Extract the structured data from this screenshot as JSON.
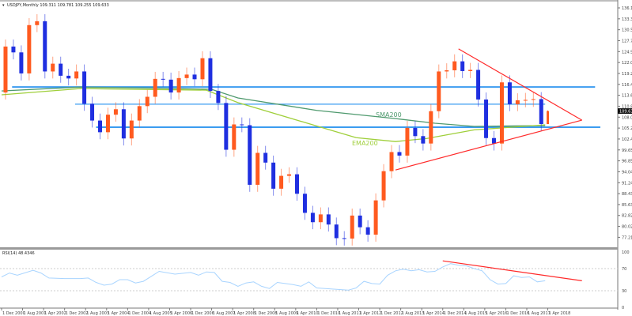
{
  "header": {
    "title": "USDJPY,Monthly  109.311 109.781 109.255 109.633"
  },
  "rsi_panel": {
    "title": "RSI(14) 48.4346"
  },
  "colors": {
    "bull": "#ff5a1f",
    "bear": "#1f2fe0",
    "sma": "#4f9a6e",
    "ema": "#9fcf3a",
    "hline": "#3b9cf0",
    "trend": "#ff2a2a",
    "rsi": "#a8d4ff"
  },
  "chart_data": [
    {
      "type": "candlestick",
      "title": "USDJPY,Monthly",
      "x_start": "Dec 2000",
      "x_step_months": 3,
      "closes": [
        114.4,
        126.2,
        124.7,
        119.3,
        131.7,
        132.7,
        119.8,
        121.8,
        118.7,
        118.0,
        119.8,
        111.5,
        107.2,
        104.2,
        108.7,
        110.1,
        102.6,
        107.2,
        110.9,
        113.3,
        117.9,
        117.7,
        114.4,
        118.1,
        119.0,
        117.8,
        123.2,
        114.8,
        111.7,
        99.7,
        106.2,
        106.0,
        90.7,
        98.9,
        96.4,
        89.7,
        93.0,
        93.4,
        88.4,
        83.5,
        81.1,
        83.1,
        80.5,
        77.0,
        76.9,
        82.8,
        79.8,
        77.9,
        86.7,
        94.2,
        99.1,
        98.2,
        105.3,
        103.2,
        101.3,
        109.6,
        119.8,
        120.1,
        122.4,
        119.9,
        120.2,
        112.6,
        102.7,
        101.3,
        117.0,
        111.4,
        112.4,
        112.5,
        112.7,
        106.3
      ],
      "last": {
        "date": "Apr 2018",
        "open": 109.311,
        "high": 109.781,
        "low": 109.255,
        "close": 109.633
      },
      "current_price_label": "109.633",
      "y_ticks": [
        "136.120",
        "133.315",
        "130.510",
        "127.705",
        "124.900",
        "122.095",
        "119.290",
        "116.485",
        "113.680",
        "110.875",
        "108.070",
        "105.265",
        "102.460",
        "99.655",
        "96.850",
        "94.045",
        "91.240",
        "88.435",
        "85.630",
        "82.825",
        "80.020",
        "77.215",
        "74.410"
      ],
      "x_ticks": [
        "1 Dec 2000",
        "1 Aug 2001",
        "1 Apr 2002",
        "1 Dec 2002",
        "1 Aug 2003",
        "1 Apr 2004",
        "1 Dec 2004",
        "1 Aug 2005",
        "1 Apr 2006",
        "1 Dec 2006",
        "1 Aug 2007",
        "1 Apr 2008",
        "1 Dec 2008",
        "1 Aug 2009",
        "1 Apr 2010",
        "1 Dec 2010",
        "1 Aug 2011",
        "1 Apr 2012",
        "1 Dec 2012",
        "1 Aug 2013",
        "1 Apr 2014",
        "1 Dec 2014",
        "1 Aug 2015",
        "1 Apr 2016",
        "1 Dec 2016",
        "1 Aug 2017",
        "1 Apr 2018"
      ],
      "series": [
        {
          "name": "SMA200",
          "points_month_value": [
            [
              0,
              114.8
            ],
            [
              30,
              115.8
            ],
            [
              60,
              115.5
            ],
            [
              80,
              115.2
            ],
            [
              90,
              113
            ],
            [
              120,
              109.8
            ],
            [
              150,
              107.7
            ],
            [
              165,
              106.5
            ],
            [
              180,
              105.7
            ],
            [
              207,
              105.9
            ]
          ]
        },
        {
          "name": "EMA200",
          "points_month_value": [
            [
              0,
              113.8
            ],
            [
              30,
              115.4
            ],
            [
              78,
              115
            ],
            [
              90,
              111.8
            ],
            [
              120,
              105.8
            ],
            [
              135,
              102.8
            ],
            [
              150,
              101.8
            ],
            [
              162,
              102.6
            ],
            [
              180,
              104.8
            ],
            [
              207,
              106.1
            ]
          ]
        }
      ],
      "horizontal_levels": [
        {
          "price": 115.8,
          "from_month": 4,
          "to_month": 226
        },
        {
          "price": 111.4,
          "from_month": 28,
          "to_month": 207
        },
        {
          "price": 105.5,
          "from_month": 36,
          "to_month": 228
        }
      ],
      "trendlines": [
        {
          "from": [
            174,
            125.6
          ],
          "to": [
            221,
            107.3
          ]
        },
        {
          "from": [
            150,
            94.5
          ],
          "to": [
            221,
            107.3
          ]
        }
      ]
    },
    {
      "type": "line",
      "title": "RSI(14) 48.4346",
      "y_ticks": [
        "100",
        "70",
        "30",
        "0"
      ],
      "ylim": [
        0,
        100
      ],
      "points_month_value": [
        [
          0,
          55
        ],
        [
          3,
          62
        ],
        [
          6,
          58
        ],
        [
          12,
          67
        ],
        [
          15,
          62
        ],
        [
          18,
          53
        ],
        [
          24,
          52
        ],
        [
          30,
          52
        ],
        [
          33,
          53
        ],
        [
          36,
          45
        ],
        [
          39,
          40
        ],
        [
          42,
          42
        ],
        [
          45,
          50
        ],
        [
          48,
          50
        ],
        [
          51,
          44
        ],
        [
          54,
          47
        ],
        [
          57,
          56
        ],
        [
          60,
          65
        ],
        [
          66,
          60
        ],
        [
          72,
          63
        ],
        [
          75,
          58
        ],
        [
          78,
          64
        ],
        [
          81,
          63
        ],
        [
          84,
          47
        ],
        [
          87,
          45
        ],
        [
          90,
          38
        ],
        [
          93,
          44
        ],
        [
          96,
          46
        ],
        [
          99,
          38
        ],
        [
          102,
          34
        ],
        [
          105,
          45
        ],
        [
          108,
          43
        ],
        [
          111,
          41
        ],
        [
          114,
          38
        ],
        [
          117,
          46
        ],
        [
          120,
          35
        ],
        [
          126,
          33
        ],
        [
          132,
          31
        ],
        [
          135,
          35
        ],
        [
          138,
          47
        ],
        [
          141,
          43
        ],
        [
          144,
          42
        ],
        [
          147,
          58
        ],
        [
          150,
          66
        ],
        [
          153,
          69
        ],
        [
          156,
          66
        ],
        [
          159,
          68
        ],
        [
          162,
          64
        ],
        [
          165,
          65
        ],
        [
          168,
          73
        ],
        [
          171,
          79
        ],
        [
          174,
          76
        ],
        [
          177,
          75
        ],
        [
          180,
          70
        ],
        [
          183,
          66
        ],
        [
          186,
          50
        ],
        [
          189,
          42
        ],
        [
          192,
          43
        ],
        [
          195,
          57
        ],
        [
          198,
          54
        ],
        [
          201,
          55
        ],
        [
          204,
          46
        ],
        [
          207,
          48
        ]
      ],
      "trendline": {
        "from": [
          168,
          84
        ],
        "to": [
          221,
          48
        ]
      }
    }
  ]
}
